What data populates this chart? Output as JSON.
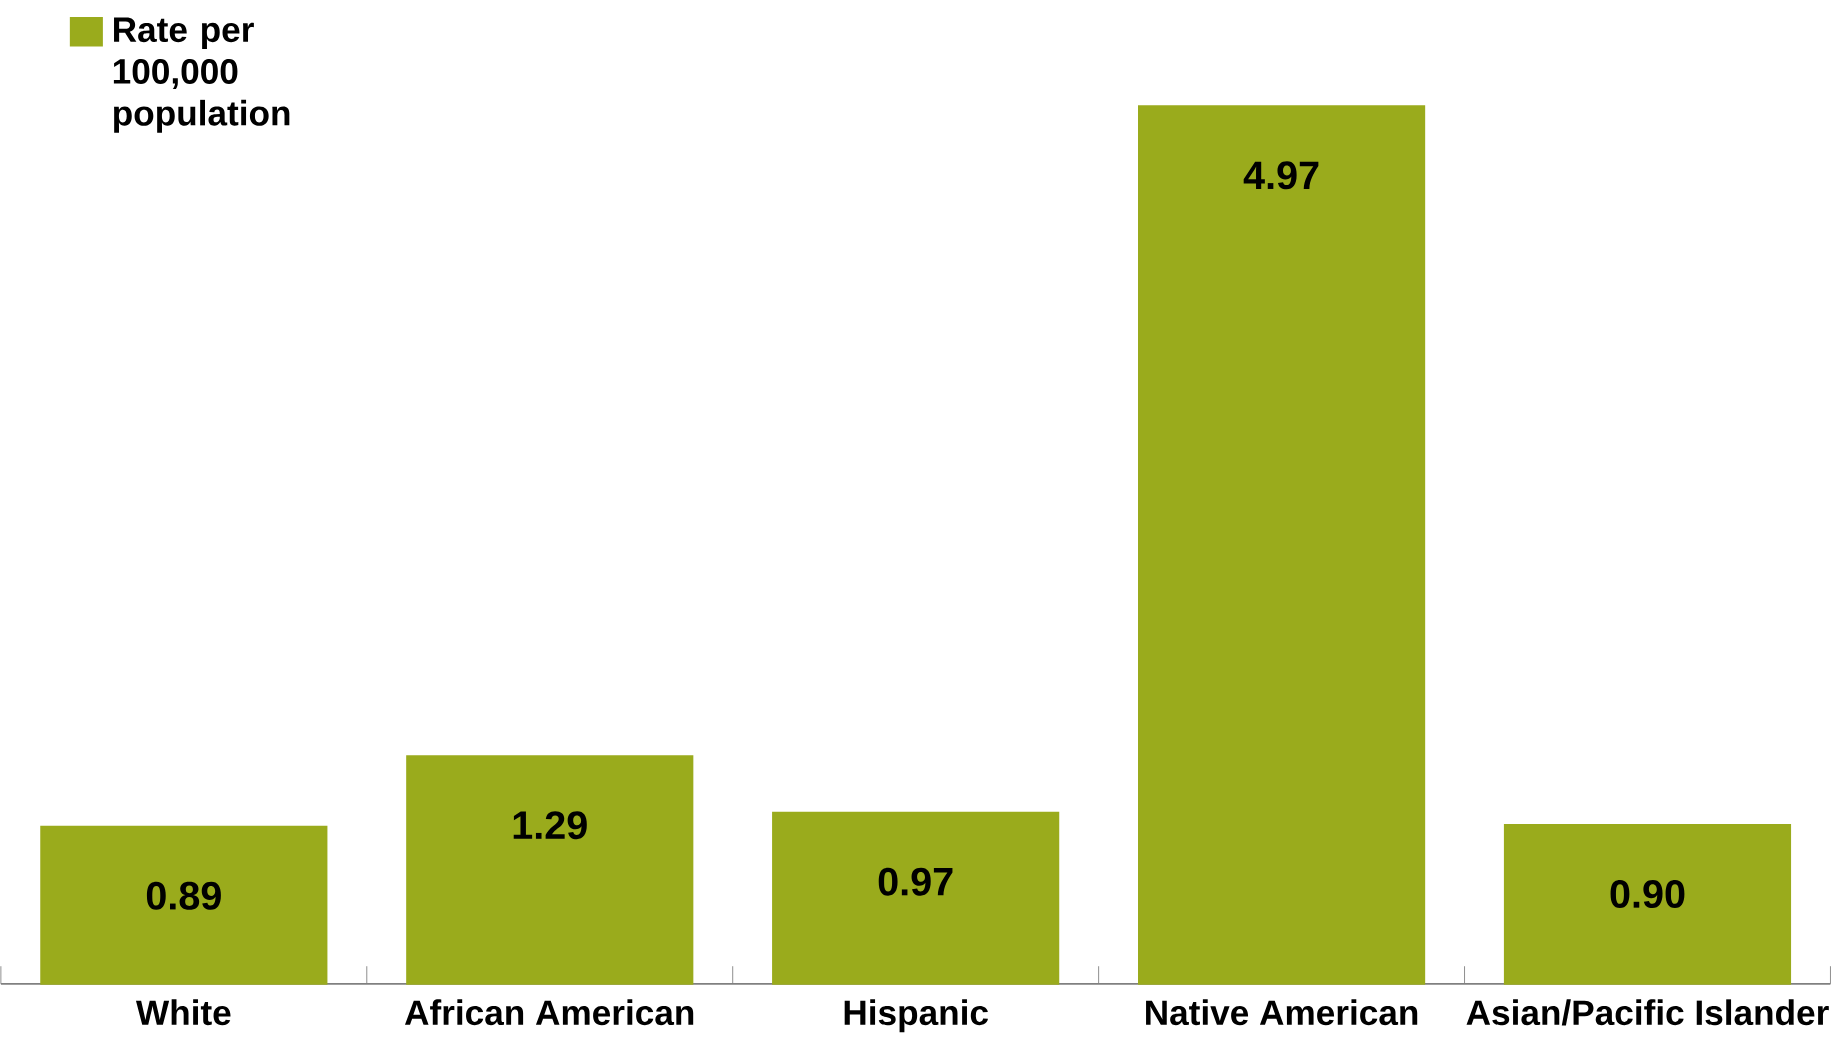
{
  "chart_data": {
    "type": "bar",
    "categories": [
      "White",
      "African American",
      "Hispanic",
      "Native American",
      "Asian/Pacific Islander"
    ],
    "series": [
      {
        "name": "Rate per 100,000 population",
        "color": "#9aab1c",
        "values": [
          0.89,
          1.29,
          0.97,
          4.97,
          0.9
        ],
        "value_labels": [
          "0.89",
          "1.29",
          "0.97",
          "4.97",
          "0.90"
        ]
      }
    ],
    "legend": "top left"
  }
}
